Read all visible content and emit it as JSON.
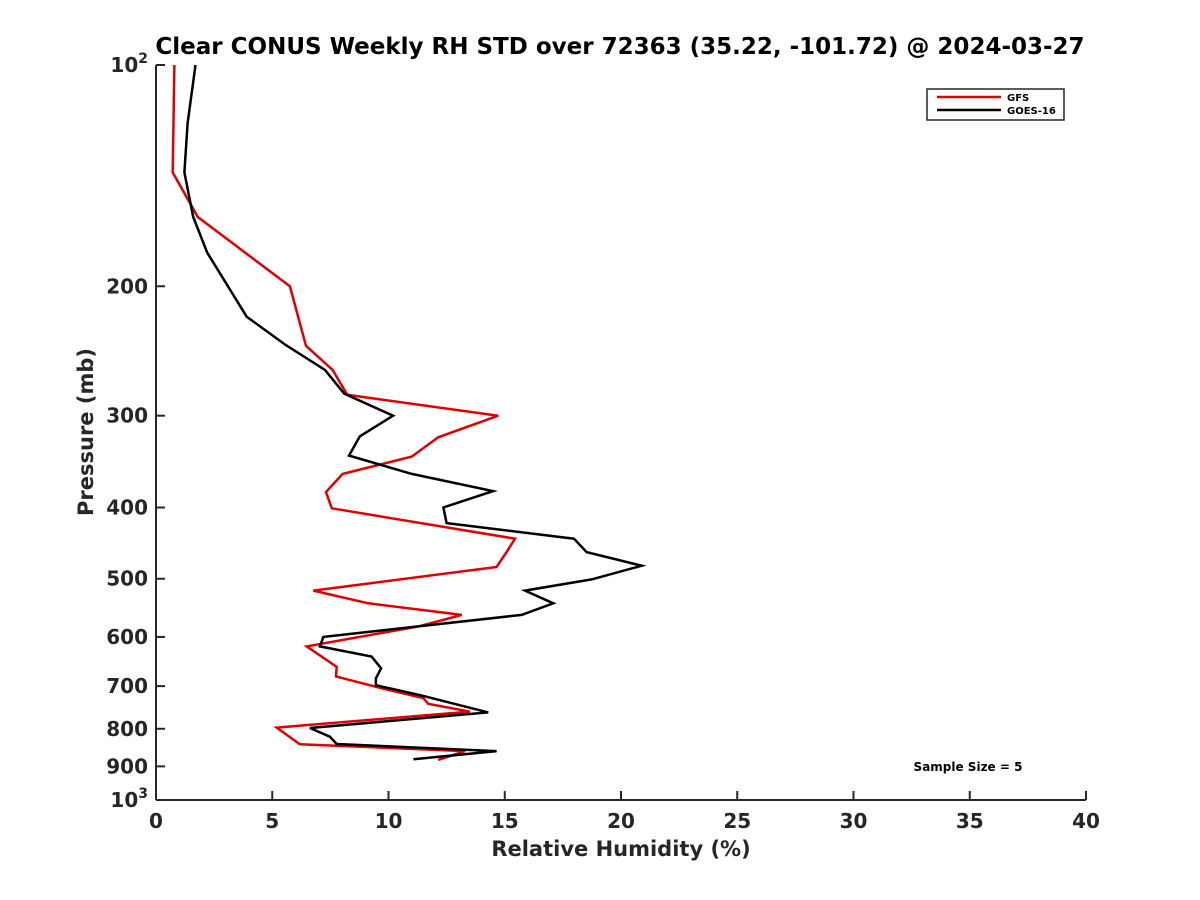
{
  "chart_data": {
    "type": "line",
    "title": "Clear CONUS Weekly RH STD over 72363 (35.22, -101.72) @ 2024-03-27",
    "xlabel": "Relative Humidity (%)",
    "ylabel": "Pressure (mb)",
    "xlim": [
      0,
      40
    ],
    "ylim": [
      100,
      1000
    ],
    "yscale": "log",
    "yreversed": true,
    "grid": false,
    "x_ticks": [
      0,
      5,
      10,
      15,
      20,
      25,
      30,
      35,
      40
    ],
    "x_tick_labels": [
      "0",
      "5",
      "10",
      "15",
      "20",
      "25",
      "30",
      "35",
      "40"
    ],
    "y_ticks": [
      100,
      200,
      300,
      400,
      500,
      600,
      700,
      800,
      900,
      1000
    ],
    "y_tick_labels": [
      {
        "base": "10",
        "exp": "2"
      },
      {
        "base": "200",
        "exp": ""
      },
      {
        "base": "300",
        "exp": ""
      },
      {
        "base": "400",
        "exp": ""
      },
      {
        "base": "500",
        "exp": ""
      },
      {
        "base": "600",
        "exp": ""
      },
      {
        "base": "700",
        "exp": ""
      },
      {
        "base": "800",
        "exp": ""
      },
      {
        "base": "900",
        "exp": ""
      },
      {
        "base": "10",
        "exp": "3"
      }
    ],
    "legend": {
      "placement": "top-right",
      "entries": [
        "GFS",
        "GOES-16"
      ]
    },
    "annotation": "Sample Size = 5",
    "series": [
      {
        "name": "GFS",
        "color": "#e00000",
        "points": [
          [
            0.79,
            100
          ],
          [
            0.72,
            140
          ],
          [
            1.8,
            161
          ],
          [
            5.76,
            200
          ],
          [
            6.45,
            241
          ],
          [
            7.6,
            260
          ],
          [
            8.23,
            281
          ],
          [
            14.72,
            300
          ],
          [
            12.14,
            321
          ],
          [
            11.0,
            341
          ],
          [
            8.03,
            360
          ],
          [
            7.31,
            381
          ],
          [
            7.56,
            401
          ],
          [
            15.44,
            441
          ],
          [
            15.08,
            460
          ],
          [
            14.65,
            482
          ],
          [
            6.77,
            519
          ],
          [
            9.13,
            540
          ],
          [
            13.15,
            560
          ],
          [
            11.35,
            580
          ],
          [
            6.48,
            618
          ],
          [
            7.77,
            659
          ],
          [
            7.74,
            679
          ],
          [
            9.42,
            701
          ],
          [
            11.5,
            727
          ],
          [
            11.71,
            740
          ],
          [
            13.5,
            758
          ],
          [
            5.19,
            797
          ],
          [
            6.19,
            840
          ],
          [
            13.3,
            858
          ],
          [
            12.14,
            882
          ]
        ]
      },
      {
        "name": "GOES-16",
        "color": "#000000",
        "points": [
          [
            1.7,
            100
          ],
          [
            1.36,
            120
          ],
          [
            1.22,
            140
          ],
          [
            1.6,
            161
          ],
          [
            2.2,
            180
          ],
          [
            3.9,
            220
          ],
          [
            5.55,
            240
          ],
          [
            7.27,
            260
          ],
          [
            8.1,
            280
          ],
          [
            10.2,
            300
          ],
          [
            8.77,
            320
          ],
          [
            8.3,
            340
          ],
          [
            11.0,
            360
          ],
          [
            14.5,
            380
          ],
          [
            12.36,
            400
          ],
          [
            12.5,
            420
          ],
          [
            17.98,
            441
          ],
          [
            18.52,
            460
          ],
          [
            20.89,
            480
          ],
          [
            18.74,
            501
          ],
          [
            15.87,
            519
          ],
          [
            17.09,
            540
          ],
          [
            15.73,
            560
          ],
          [
            7.2,
            600
          ],
          [
            7.05,
            618
          ],
          [
            9.27,
            638
          ],
          [
            9.68,
            662
          ],
          [
            9.46,
            683
          ],
          [
            9.46,
            698
          ],
          [
            11.35,
            720
          ],
          [
            14.29,
            760
          ],
          [
            6.62,
            798
          ],
          [
            7.48,
            820
          ],
          [
            7.77,
            839
          ],
          [
            14.65,
            858
          ],
          [
            11.07,
            880
          ]
        ]
      }
    ]
  }
}
